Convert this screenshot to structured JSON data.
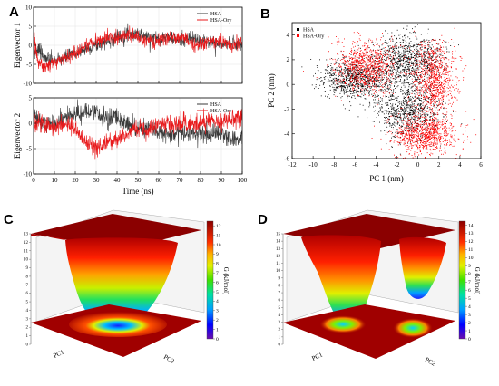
{
  "panels": {
    "A": {
      "letter": "A"
    },
    "B": {
      "letter": "B"
    },
    "C": {
      "letter": "C"
    },
    "D": {
      "letter": "D"
    }
  },
  "chart_data": [
    {
      "id": "A-top",
      "type": "line",
      "ylabel": "Eigenvector 1",
      "xlim": [
        0,
        100
      ],
      "ylim": [
        -10,
        10
      ],
      "yticks": [
        -10,
        -5,
        0,
        5,
        10
      ],
      "xticks": [
        0,
        10,
        20,
        30,
        40,
        50,
        60,
        70,
        80,
        90,
        100
      ],
      "legend_position": "top-right",
      "series": [
        {
          "name": "HSA",
          "color": "#3a3a3a",
          "x": [
            0,
            2,
            5,
            8,
            12,
            16,
            20,
            25,
            30,
            35,
            40,
            45,
            50,
            55,
            60,
            65,
            70,
            75,
            80,
            85,
            90,
            95,
            100
          ],
          "values": [
            -2,
            -1,
            -3,
            -4,
            -4,
            -3,
            -2,
            -1,
            0,
            1,
            2,
            3,
            3,
            2,
            2,
            2,
            1,
            2,
            1,
            1,
            0,
            1,
            0
          ]
        },
        {
          "name": "HSA-Ory",
          "color": "#e8191b",
          "x": [
            0,
            2,
            5,
            8,
            12,
            16,
            20,
            25,
            30,
            35,
            40,
            45,
            50,
            55,
            60,
            65,
            70,
            75,
            80,
            85,
            90,
            95,
            100
          ],
          "values": [
            3,
            -4,
            -6,
            -5,
            -4,
            -3,
            -2,
            0,
            1,
            2,
            2,
            3,
            2,
            1,
            1,
            2,
            2,
            1,
            0,
            1,
            1,
            0,
            1
          ]
        }
      ]
    },
    {
      "id": "A-bottom",
      "type": "line",
      "ylabel": "Eigenvector 2",
      "xlabel": "Time (ns)",
      "xlim": [
        0,
        100
      ],
      "ylim": [
        -10,
        5
      ],
      "yticks": [
        -10,
        -5,
        0,
        5
      ],
      "xticks": [
        0,
        10,
        20,
        30,
        40,
        50,
        60,
        70,
        80,
        90,
        100
      ],
      "legend_position": "top-right",
      "series": [
        {
          "name": "HSA",
          "color": "#3a3a3a",
          "x": [
            0,
            5,
            10,
            15,
            20,
            25,
            30,
            35,
            40,
            45,
            50,
            55,
            60,
            65,
            70,
            75,
            80,
            85,
            90,
            95,
            100
          ],
          "values": [
            1,
            0,
            0,
            1,
            2,
            2,
            2,
            1,
            1,
            0,
            -1,
            -1,
            -2,
            -2,
            -2,
            -2,
            -2,
            -2,
            -2,
            -3,
            -3
          ]
        },
        {
          "name": "HSA-Ory",
          "color": "#e8191b",
          "x": [
            0,
            5,
            10,
            15,
            20,
            25,
            30,
            35,
            40,
            45,
            50,
            55,
            60,
            65,
            70,
            75,
            80,
            85,
            90,
            95,
            100
          ],
          "values": [
            0,
            0,
            -1,
            0,
            -1,
            -4,
            -5,
            -4,
            -3,
            -2,
            -1,
            -1,
            0,
            0,
            0,
            0,
            0,
            1,
            0,
            1,
            1
          ]
        }
      ]
    },
    {
      "id": "B",
      "type": "scatter",
      "xlabel": "PC 1 (nm)",
      "ylabel": "PC 2 (nm)",
      "xlim": [
        -12,
        6
      ],
      "ylim": [
        -6,
        5
      ],
      "xticks": [
        -12,
        -10,
        -8,
        -6,
        -4,
        -2,
        0,
        2,
        4,
        6
      ],
      "yticks": [
        -6,
        -4,
        -2,
        0,
        2,
        4
      ],
      "legend_position": "top-left",
      "series": [
        {
          "name": "HSA",
          "color": "#000000",
          "clusters": [
            {
              "cx": -1,
              "cy": 2,
              "sx": 1.6,
              "sy": 1.0
            },
            {
              "cx": -1,
              "cy": -2,
              "sx": 1.5,
              "sy": 1.2
            },
            {
              "cx": -6,
              "cy": 0.5,
              "sx": 1.6,
              "sy": 0.8
            }
          ]
        },
        {
          "name": "HSA-Ory",
          "color": "#ff0000",
          "clusters": [
            {
              "cx": 1.5,
              "cy": 0.5,
              "sx": 1.0,
              "sy": 1.4
            },
            {
              "cx": -5,
              "cy": 1.5,
              "sx": 1.4,
              "sy": 1.0
            },
            {
              "cx": 0.5,
              "cy": -4,
              "sx": 1.5,
              "sy": 0.8
            }
          ]
        }
      ]
    },
    {
      "id": "C",
      "type": "heatmap",
      "zlabel": "G (kJ/mol)",
      "xlabel": "PC1",
      "ylabel": "PC2",
      "zlim": [
        0,
        13
      ],
      "zticks": [
        0,
        1,
        2,
        3,
        4,
        5,
        6,
        7,
        8,
        9,
        10,
        11,
        12,
        13
      ],
      "colorbar_ticks": [
        0,
        1,
        2,
        3,
        4,
        5,
        6,
        7,
        8,
        9,
        10,
        11,
        12
      ],
      "colorbar_max": 12.5
    },
    {
      "id": "D",
      "type": "heatmap",
      "zlabel": "G (kJ/mol)",
      "xlabel": "PC1",
      "ylabel": "PC2",
      "zlim": [
        0,
        15
      ],
      "zticks": [
        0,
        1,
        2,
        3,
        4,
        5,
        6,
        7,
        8,
        9,
        10,
        11,
        12,
        13,
        14,
        15
      ],
      "colorbar_ticks": [
        0,
        1,
        2,
        3,
        4,
        5,
        6,
        7,
        8,
        9,
        10,
        11,
        12,
        13,
        14
      ],
      "colorbar_max": 14.5
    }
  ]
}
